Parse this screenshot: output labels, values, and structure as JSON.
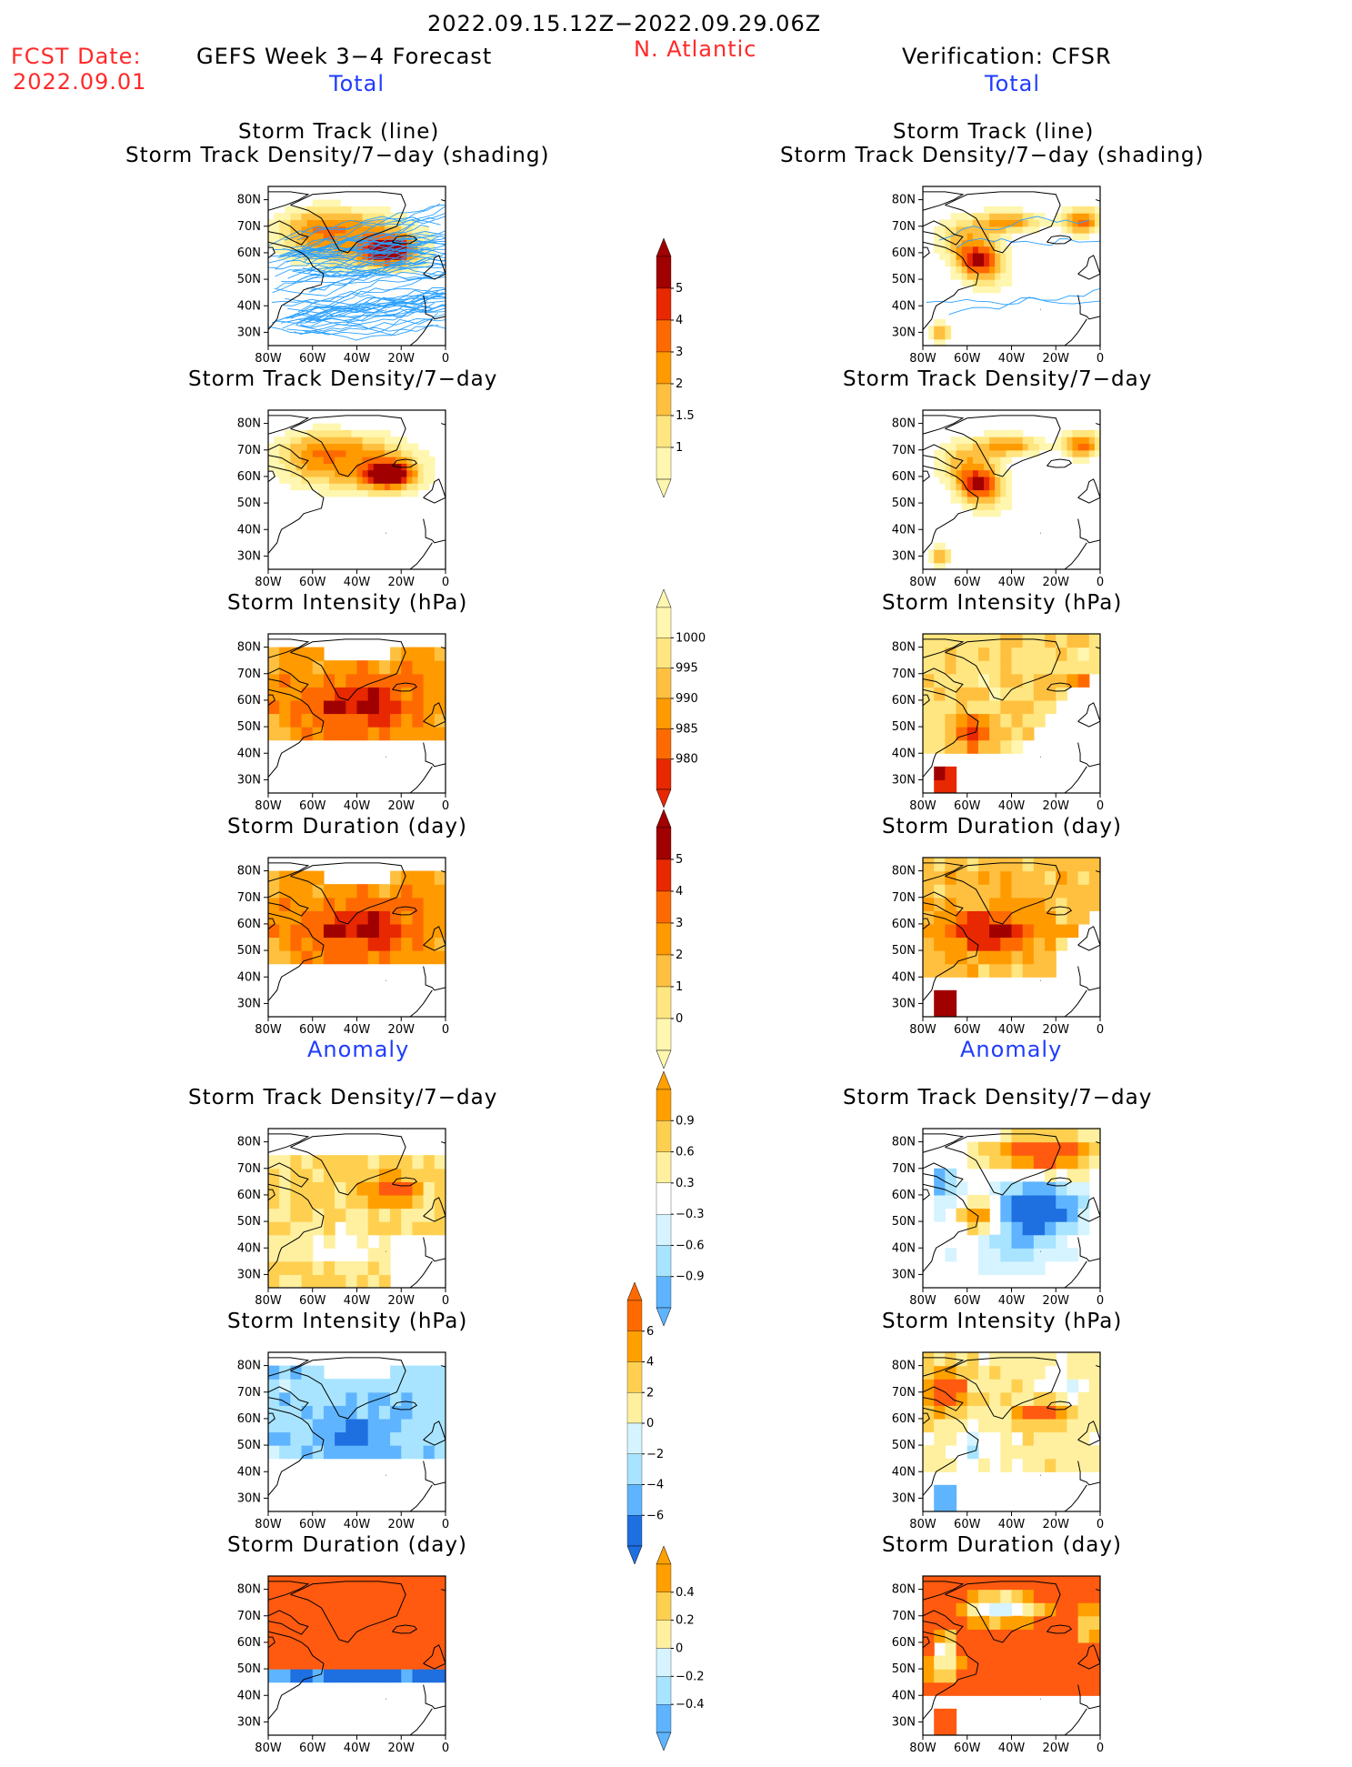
{
  "header": {
    "date_range": "2022.09.15.12Z−2022.09.29.06Z",
    "fcst_label": "FCST Date:",
    "fcst_date": "2022.09.01",
    "forecast_title": "GEFS Week 3−4 Forecast",
    "region": "N. Atlantic",
    "verification": "Verification: CFSR"
  },
  "sections": {
    "total_left": "Total",
    "total_right": "Total",
    "anomaly_left": "Anomaly",
    "anomaly_right": "Anomaly"
  },
  "panel_titles": {
    "track_line": "Storm Track (line)",
    "track_shading": "Storm Track Density/7−day (shading)",
    "density": "Storm Track Density/7−day",
    "intensity": "Storm Intensity (hPa)",
    "duration": "Storm Duration (day)"
  },
  "axes": {
    "lat_labels": [
      "80N",
      "70N",
      "60N",
      "50N",
      "40N",
      "30N"
    ],
    "lon_labels": [
      "80W",
      "60W",
      "40W",
      "20W",
      "0"
    ]
  },
  "colorbars": {
    "density_total": [
      "5",
      "4",
      "3",
      "2",
      "1.5",
      "1"
    ],
    "intensity_total": [
      "1000",
      "995",
      "990",
      "985",
      "980"
    ],
    "duration_total": [
      "5",
      "4",
      "3",
      "2",
      "1",
      "0"
    ],
    "density_anom": [
      "0.9",
      "0.6",
      "0.3",
      "−0.3",
      "−0.6",
      "−0.9"
    ],
    "intensity_anom": [
      "6",
      "4",
      "2",
      "0",
      "−2",
      "−4",
      "−6"
    ],
    "duration_anom": [
      "0.4",
      "0.2",
      "0",
      "−0.2",
      "−0.4"
    ]
  },
  "colors": {
    "title_red": "#ff2a2a",
    "title_blue": "#1f3cff",
    "track_line": "#2aa0ff",
    "warm": [
      "#fff6b0",
      "#ffe680",
      "#ffc040",
      "#ff9a00",
      "#ff6a00",
      "#e82800",
      "#a00000"
    ],
    "cool": [
      "#d6f4ff",
      "#a8e4ff",
      "#5fb4ff",
      "#1e6fe0"
    ]
  }
}
